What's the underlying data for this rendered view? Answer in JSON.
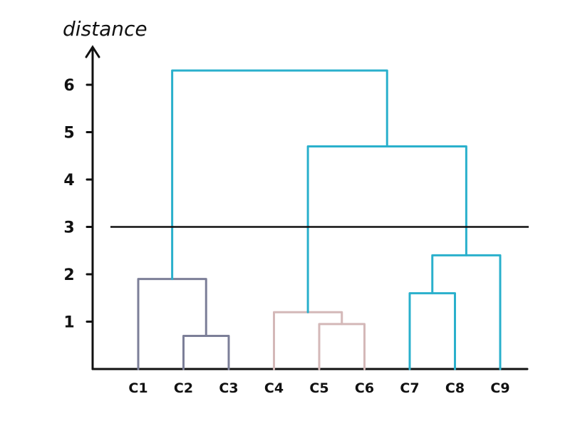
{
  "chart_data": {
    "type": "dendrogram",
    "ylabel": "distance",
    "y_ticks": [
      1,
      2,
      3,
      4,
      5,
      6
    ],
    "y_tick_labels": [
      "1",
      "2",
      "3",
      "4",
      "5",
      "6"
    ],
    "ylim": [
      0,
      7
    ],
    "leaves": [
      "C1",
      "C2",
      "C3",
      "C4",
      "C5",
      "C6",
      "C7",
      "C8",
      "C9"
    ],
    "cut_threshold": 3,
    "merges": [
      {
        "id": "m1",
        "left": "C2",
        "right": "C3",
        "height": 0.7,
        "color": "#7c7f98"
      },
      {
        "id": "m2",
        "left": "C1",
        "right": "m1",
        "height": 1.9,
        "color": "#7c7f98"
      },
      {
        "id": "m3",
        "left": "C5",
        "right": "C6",
        "height": 0.95,
        "color": "#d4b8b8"
      },
      {
        "id": "m4",
        "left": "C4",
        "right": "m3",
        "height": 1.2,
        "color": "#d4b8b8"
      },
      {
        "id": "m5",
        "left": "C7",
        "right": "C8",
        "height": 1.6,
        "color": "#2ab0cc"
      },
      {
        "id": "m6",
        "left": "m5",
        "right": "C9",
        "height": 2.4,
        "color": "#2ab0cc"
      },
      {
        "id": "m7",
        "left": "m4",
        "right": "m6",
        "height": 4.7,
        "color": "#2ab0cc"
      },
      {
        "id": "m8",
        "left": "m2",
        "right": "m7",
        "height": 6.3,
        "color": "#2ab0cc"
      }
    ]
  }
}
